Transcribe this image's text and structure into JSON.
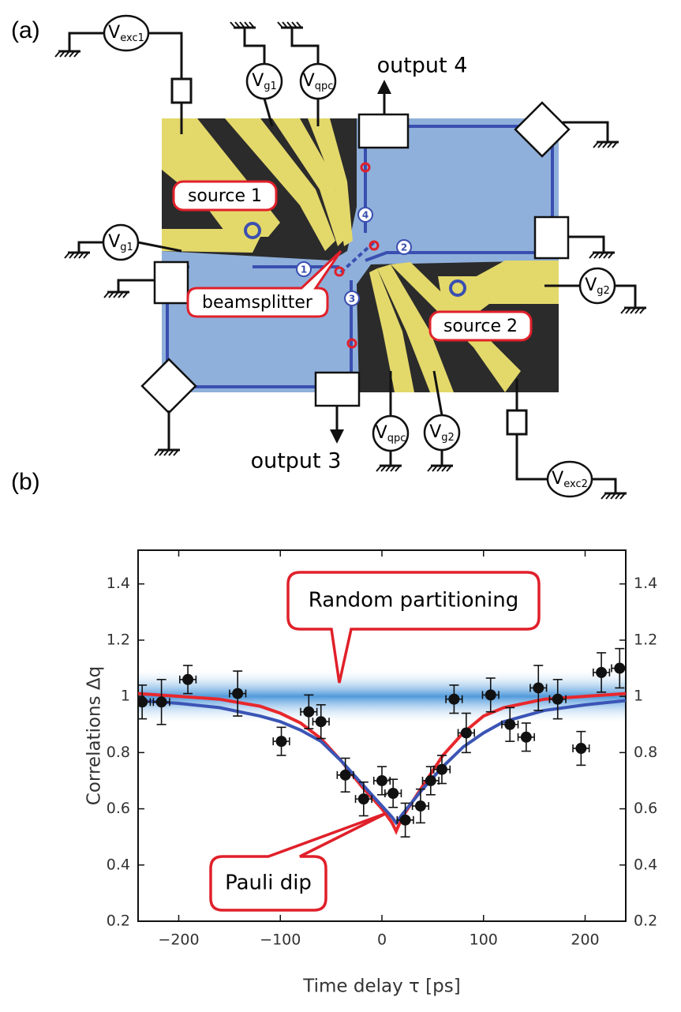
{
  "diagram": {
    "panel_label": "(a)",
    "source_1": "source 1",
    "source_2": "source 2",
    "beamsplitter": "beamsplitter",
    "output_4": "output 4",
    "output_3": "output 3",
    "path_numbers": [
      "1",
      "2",
      "3",
      "4"
    ],
    "voltmeters": [
      {
        "main": "V",
        "sub": "exc1"
      },
      {
        "main": "V",
        "sub": "g1"
      },
      {
        "main": "V",
        "sub": "qpc"
      },
      {
        "main": "V",
        "sub": "g1"
      },
      {
        "main": "V",
        "sub": "g2"
      },
      {
        "main": "V",
        "sub": "qpc"
      },
      {
        "main": "V",
        "sub": "g2"
      },
      {
        "main": "V",
        "sub": "exc2"
      }
    ]
  },
  "chart_data": {
    "type": "scatter",
    "panel_label": "(b)",
    "x_label": "Time delay τ [ps]",
    "y_label": "Correlations Δq",
    "xlim": [
      -240,
      240
    ],
    "ylim": [
      0.2,
      1.52
    ],
    "xticks": [
      {
        "value": -200,
        "label": "−200"
      },
      {
        "value": -100,
        "label": "−100"
      },
      0,
      100,
      200
    ],
    "yticks": [
      0.2,
      0.4,
      0.6,
      0.8,
      1,
      1.2,
      1.4
    ],
    "band": [
      0.9,
      1.1
    ],
    "band_color": "#3d8fd8",
    "points": {
      "color": "#111111",
      "x": [
        -236,
        -217,
        -191,
        -142,
        -99,
        -72,
        -60,
        -36,
        -18,
        0,
        11,
        23,
        38,
        48,
        59,
        71,
        83,
        107,
        126,
        142,
        154,
        173,
        196,
        216,
        234
      ],
      "y": [
        0.98,
        0.98,
        1.06,
        1.01,
        0.84,
        0.945,
        0.91,
        0.72,
        0.635,
        0.7,
        0.655,
        0.56,
        0.61,
        0.7,
        0.74,
        0.99,
        0.87,
        1.005,
        0.9,
        0.855,
        1.03,
        0.99,
        0.815,
        1.085,
        1.1
      ],
      "xerr": [
        8,
        8,
        8,
        8,
        8,
        8,
        8,
        8,
        8,
        8,
        8,
        8,
        8,
        8,
        8,
        8,
        8,
        8,
        8,
        8,
        8,
        8,
        8,
        8,
        8
      ],
      "yerr": [
        0.06,
        0.08,
        0.05,
        0.08,
        0.05,
        0.06,
        0.06,
        0.06,
        0.06,
        0.05,
        0.05,
        0.06,
        0.06,
        0.05,
        0.05,
        0.05,
        0.07,
        0.06,
        0.06,
        0.05,
        0.08,
        0.07,
        0.06,
        0.07,
        0.07
      ]
    },
    "curves": [
      {
        "color": "#e8282d",
        "x": [
          -240,
          -200,
          -160,
          -120,
          -100,
          -80,
          -60,
          -40,
          -20,
          0,
          10,
          14,
          20,
          40,
          60,
          80,
          100,
          120,
          160,
          200,
          240
        ],
        "y": [
          1.01,
          1.0,
          0.99,
          0.965,
          0.94,
          0.905,
          0.85,
          0.77,
          0.68,
          0.6,
          0.55,
          0.52,
          0.57,
          0.68,
          0.79,
          0.87,
          0.93,
          0.96,
          0.99,
          1.0,
          1.01
        ]
      },
      {
        "color": "#3b55b5",
        "x": [
          -240,
          -200,
          -160,
          -120,
          -100,
          -80,
          -60,
          -40,
          -20,
          0,
          10,
          14,
          20,
          40,
          60,
          80,
          100,
          120,
          160,
          200,
          240
        ],
        "y": [
          0.985,
          0.975,
          0.96,
          0.93,
          0.91,
          0.88,
          0.84,
          0.77,
          0.69,
          0.61,
          0.57,
          0.55,
          0.58,
          0.67,
          0.75,
          0.82,
          0.87,
          0.91,
          0.95,
          0.97,
          0.985
        ]
      }
    ],
    "annotations": [
      "Random partitioning",
      "Pauli dip"
    ]
  }
}
